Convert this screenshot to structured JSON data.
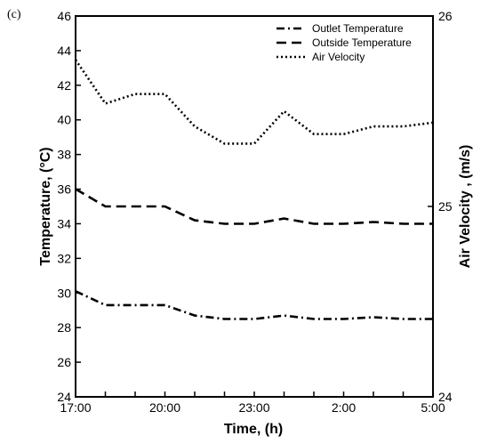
{
  "panel_label": "(c)",
  "chart_data": {
    "type": "line",
    "xlabel": "Time, (h)",
    "ylabel": "Temperature, (°C)",
    "y2label": "Air Velocity , (m/s)",
    "x_ticks": [
      "17:00",
      "20:00",
      "23:00",
      "2:00",
      "5:00"
    ],
    "x": [
      "17:00",
      "18:00",
      "19:00",
      "20:00",
      "21:00",
      "22:00",
      "23:00",
      "0:00",
      "1:00",
      "2:00",
      "3:00",
      "4:00",
      "5:00"
    ],
    "ylim": [
      24,
      46
    ],
    "yticks": [
      24,
      26,
      28,
      30,
      32,
      34,
      36,
      38,
      40,
      42,
      44,
      46
    ],
    "y2lim": [
      24,
      26
    ],
    "y2ticks": [
      24,
      25,
      26
    ],
    "legend_position": "top-right",
    "series": [
      {
        "name": "Outlet Temperature",
        "axis": "left",
        "style": "dashdot",
        "values": [
          30.1,
          29.3,
          29.3,
          29.3,
          28.7,
          28.5,
          28.5,
          28.7,
          28.5,
          28.5,
          28.6,
          28.5,
          28.5
        ]
      },
      {
        "name": "Outside Temperature",
        "axis": "left",
        "style": "dashed",
        "values": [
          36.0,
          35.0,
          35.0,
          35.0,
          34.2,
          34.0,
          34.0,
          34.3,
          34.0,
          34.0,
          34.1,
          34.0,
          34.0
        ]
      },
      {
        "name": "Air Velocity",
        "axis": "right",
        "style": "dotted",
        "values": [
          25.77,
          25.54,
          25.59,
          25.59,
          25.42,
          25.33,
          25.33,
          25.5,
          25.38,
          25.38,
          25.42,
          25.42,
          25.44
        ]
      }
    ]
  }
}
